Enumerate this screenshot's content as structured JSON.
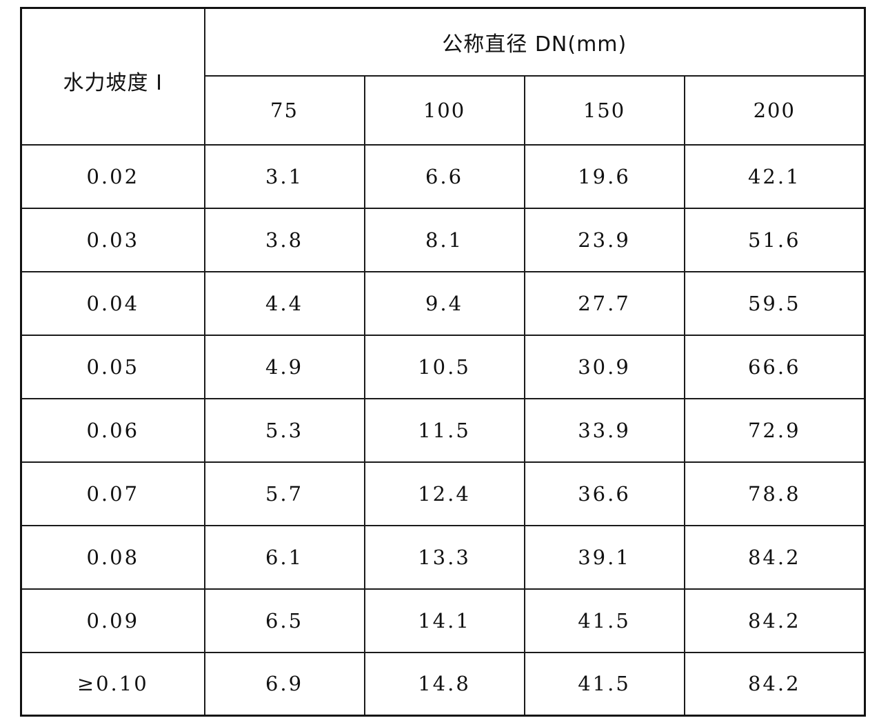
{
  "table": {
    "stub_header": "水力坡度 I",
    "group_header": "公称直径 DN(mm)",
    "columns": [
      "75",
      "100",
      "150",
      "200"
    ],
    "rows": [
      {
        "slope": "0.02",
        "values": [
          "3.1",
          "6.6",
          "19.6",
          "42.1"
        ]
      },
      {
        "slope": "0.03",
        "values": [
          "3.8",
          "8.1",
          "23.9",
          "51.6"
        ]
      },
      {
        "slope": "0.04",
        "values": [
          "4.4",
          "9.4",
          "27.7",
          "59.5"
        ]
      },
      {
        "slope": "0.05",
        "values": [
          "4.9",
          "10.5",
          "30.9",
          "66.6"
        ]
      },
      {
        "slope": "0.06",
        "values": [
          "5.3",
          "11.5",
          "33.9",
          "72.9"
        ]
      },
      {
        "slope": "0.07",
        "values": [
          "5.7",
          "12.4",
          "36.6",
          "78.8"
        ]
      },
      {
        "slope": "0.08",
        "values": [
          "6.1",
          "13.3",
          "39.1",
          "84.2"
        ]
      },
      {
        "slope": "0.09",
        "values": [
          "6.5",
          "14.1",
          "41.5",
          "84.2"
        ]
      },
      {
        "slope": "≥0.10",
        "values": [
          "6.9",
          "14.8",
          "41.5",
          "84.2"
        ]
      }
    ]
  }
}
